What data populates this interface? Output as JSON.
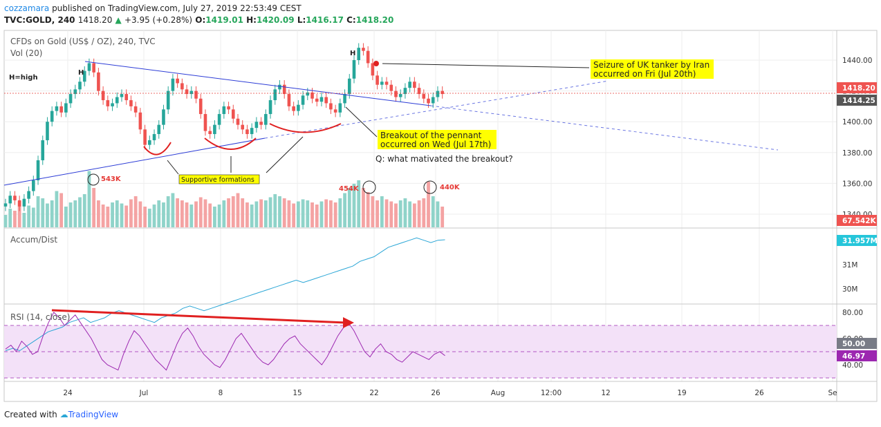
{
  "header": {
    "username": "cozzamara",
    "published_text": "published on TradingView.com, July 27, 2019 22:53:49 CEST",
    "symbol": "TVC:GOLD, 240",
    "last": "1418.20",
    "change": "+3.95 (+0.28%)",
    "open_label": "O:",
    "open": "1419.01",
    "high_label": "H:",
    "high": "1420.09",
    "low_label": "L:",
    "low": "1416.17",
    "close_label": "C:",
    "close": "1418.20"
  },
  "panes": {
    "main_title": "CFDs on Gold (US$ / OZ), 240, TVC",
    "vol_title": "Vol (20)",
    "accum_title": "Accum/Dist",
    "rsi_title": "RSI (14, close)"
  },
  "colors": {
    "up": "#26a69a",
    "down": "#ef5350",
    "trend": "#2b3bd6",
    "annotation": "#e02020",
    "ad_line": "#2aa6d6",
    "rsi_line": "#9c27b0",
    "rsi_band": "#f3e1f8",
    "label_bg": "#ffff00"
  },
  "annotations": {
    "h_high": "H=high",
    "h1": "H",
    "h2": "H",
    "seizure_line1": "Seizure of UK tanker by Iran",
    "seizure_line2": "occurred on Fri (Jul 20th)",
    "breakout_line1": "Breakout of the pennant",
    "breakout_line2": "occurred on Wed (Jul 17th)",
    "question": "Q: what mativated the breakout?",
    "supportive": "Supportive formations",
    "vol_543": "543K",
    "vol_454": "454K",
    "vol_440": "440K"
  },
  "price_badges": {
    "last": "1418.20",
    "level": "1414.25",
    "volume": "67.542K",
    "accum": "31.957M",
    "rsi_50": "50.00",
    "rsi_val": "46.97"
  },
  "axes": {
    "price_ticks": [
      "1440.00",
      "1420.00",
      "1400.00",
      "1380.00",
      "1360.00",
      "1340.00"
    ],
    "accum_ticks": [
      "31M",
      "30M"
    ],
    "rsi_ticks": [
      "80.00",
      "60.00",
      "40.00"
    ],
    "time_ticks": [
      "24",
      "Jul",
      "8",
      "15",
      "22",
      "26",
      "Aug",
      "12:00",
      "12",
      "19",
      "26",
      "Se"
    ]
  },
  "footer": {
    "created": "Created with",
    "brand": "TradingView"
  },
  "chart_data": {
    "type": "candlestick",
    "symbol": "TVC:GOLD",
    "interval": "240",
    "ylim": [
      1340,
      1452
    ],
    "close_path": [
      1347,
      1352,
      1349,
      1345,
      1350,
      1355,
      1362,
      1375,
      1388,
      1400,
      1407,
      1410,
      1406,
      1412,
      1418,
      1421,
      1426,
      1433,
      1438,
      1432,
      1420,
      1414,
      1410,
      1412,
      1416,
      1418,
      1414,
      1410,
      1406,
      1395,
      1385,
      1388,
      1392,
      1398,
      1408,
      1420,
      1428,
      1425,
      1421,
      1418,
      1420,
      1415,
      1405,
      1394,
      1392,
      1398,
      1405,
      1410,
      1408,
      1402,
      1398,
      1395,
      1392,
      1396,
      1400,
      1398,
      1405,
      1414,
      1421,
      1424,
      1418,
      1410,
      1407,
      1411,
      1417,
      1419,
      1415,
      1413,
      1416,
      1412,
      1408,
      1406,
      1412,
      1418,
      1428,
      1440,
      1448,
      1446,
      1438,
      1430,
      1424,
      1426,
      1424,
      1420,
      1416,
      1418,
      1422,
      1426,
      1422,
      1418,
      1415,
      1412,
      1416,
      1420,
      1418
    ],
    "volume_K": [
      120,
      180,
      160,
      250,
      140,
      210,
      190,
      300,
      280,
      230,
      260,
      350,
      330,
      200,
      240,
      260,
      290,
      320,
      543,
      380,
      260,
      220,
      200,
      240,
      260,
      230,
      210,
      270,
      300,
      250,
      200,
      180,
      220,
      260,
      240,
      300,
      330,
      280,
      260,
      240,
      220,
      250,
      290,
      270,
      230,
      200,
      220,
      260,
      280,
      300,
      330,
      280,
      240,
      220,
      250,
      270,
      260,
      290,
      320,
      300,
      280,
      260,
      230,
      250,
      270,
      260,
      240,
      220,
      250,
      270,
      260,
      240,
      280,
      330,
      380,
      420,
      454,
      380,
      340,
      300,
      260,
      300,
      270,
      250,
      230,
      260,
      280,
      250,
      230,
      260,
      280,
      440,
      300,
      250,
      200
    ],
    "accum_dist_M": [
      29.6,
      29.65,
      29.6,
      29.7,
      29.8,
      29.9,
      30.0,
      30.05,
      30.1,
      30.2,
      30.25,
      30.3,
      30.2,
      30.25,
      30.3,
      30.4,
      30.45,
      30.4,
      30.35,
      30.3,
      30.25,
      30.2,
      30.3,
      30.35,
      30.4,
      30.5,
      30.55,
      30.5,
      30.45,
      30.5,
      30.55,
      30.6,
      30.65,
      30.7,
      30.75,
      30.8,
      30.85,
      30.9,
      30.95,
      31.0,
      31.05,
      31.1,
      31.05,
      31.1,
      31.15,
      31.2,
      31.25,
      31.3,
      31.35,
      31.4,
      31.5,
      31.55,
      31.6,
      31.7,
      31.8,
      31.85,
      31.9,
      31.95,
      32.0,
      31.95,
      31.9,
      31.95,
      31.96
    ],
    "rsi": [
      52,
      55,
      50,
      58,
      54,
      48,
      50,
      62,
      72,
      80,
      76,
      70,
      74,
      78,
      72,
      66,
      60,
      52,
      44,
      40,
      38,
      36,
      48,
      58,
      66,
      62,
      56,
      50,
      44,
      40,
      36,
      46,
      56,
      64,
      68,
      62,
      54,
      48,
      44,
      40,
      38,
      44,
      52,
      60,
      64,
      58,
      52,
      46,
      42,
      40,
      44,
      50,
      56,
      60,
      62,
      56,
      52,
      48,
      44,
      40,
      46,
      54,
      62,
      68,
      72,
      66,
      58,
      50,
      46,
      52,
      56,
      50,
      48,
      44,
      42,
      46,
      50,
      48,
      46,
      44,
      48,
      50,
      47
    ]
  }
}
